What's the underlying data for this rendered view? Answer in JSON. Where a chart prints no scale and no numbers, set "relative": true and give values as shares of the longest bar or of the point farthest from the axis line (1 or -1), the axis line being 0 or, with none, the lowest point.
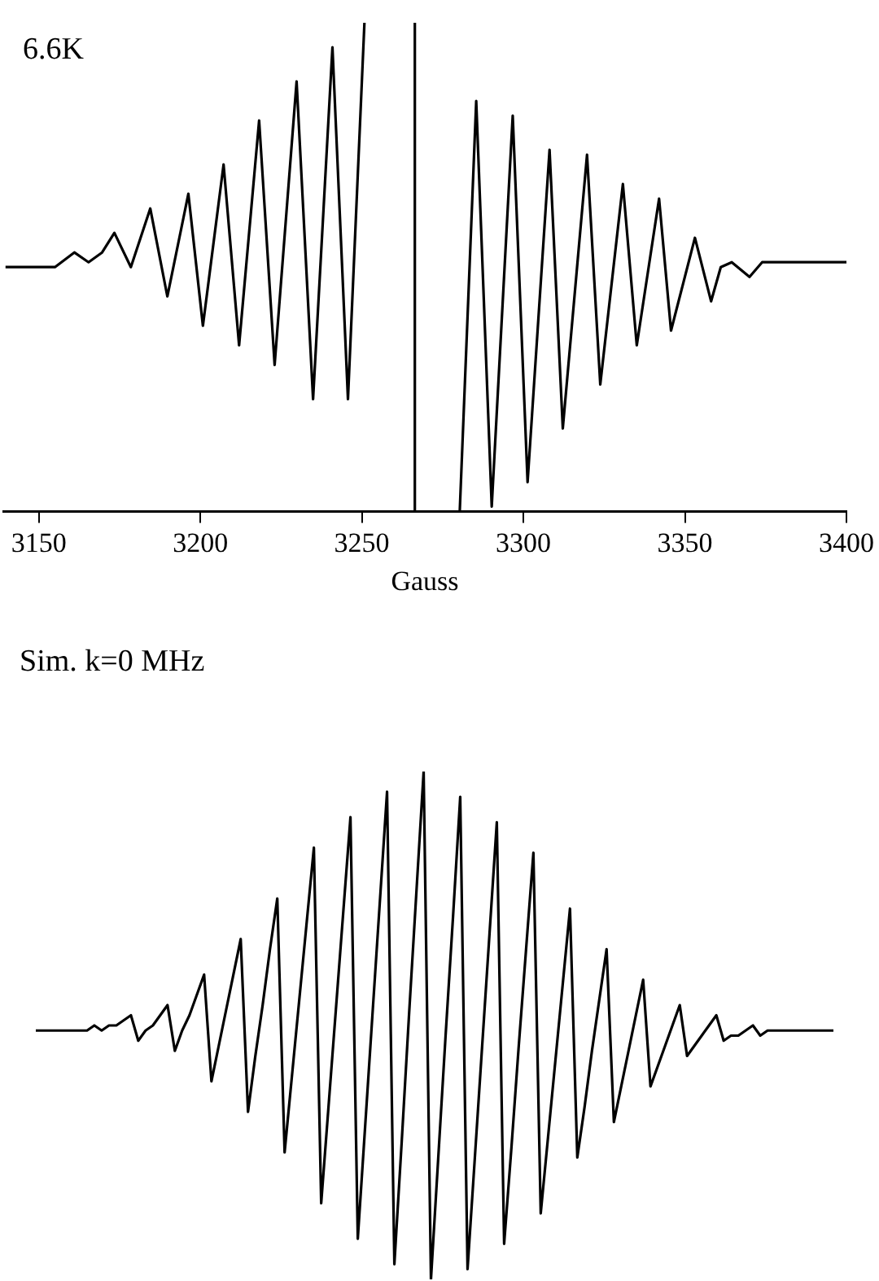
{
  "chart_data": [
    {
      "type": "line",
      "title": "6.6K",
      "xlabel": "Gauss",
      "relative": true,
      "color": "#000000",
      "xlim": [
        3139,
        3400
      ],
      "xticks": [
        3150,
        3200,
        3250,
        3300,
        3350,
        3400
      ],
      "x": [
        3139.7,
        3155,
        3161,
        3165.4,
        3169.6,
        3173.4,
        3178.5,
        3184.5,
        3189.8,
        3196.3,
        3200.8,
        3207.2,
        3212,
        3218.2,
        3223,
        3229.8,
        3234.9,
        3240.9,
        3245.7,
        3250.8,
        3258,
        3266.4,
        3266.4,
        3273,
        3280.3,
        3285.4,
        3290.2,
        3296.7,
        3301.3,
        3308.1,
        3312.2,
        3319.7,
        3323.8,
        3330.8,
        3335.1,
        3342,
        3345.7,
        3353.1,
        3358.1,
        3361.1,
        3364.5,
        3370,
        3373.9,
        3400
      ],
      "values": [
        0.5,
        0.5,
        0.53,
        0.51,
        0.53,
        0.57,
        0.5,
        0.62,
        0.44,
        0.65,
        0.38,
        0.71,
        0.34,
        0.8,
        0.3,
        0.88,
        0.23,
        0.95,
        0.23,
        1.0,
        null,
        1.0,
        0.0,
        null,
        0.0,
        0.84,
        0.01,
        0.81,
        0.06,
        0.74,
        0.17,
        0.73,
        0.26,
        0.67,
        0.34,
        0.64,
        0.37,
        0.56,
        0.43,
        0.5,
        0.51,
        0.48,
        0.51,
        0.51
      ]
    },
    {
      "type": "line",
      "title": "Sim. k=0 MHz",
      "relative": true,
      "color": "#000000",
      "tick_labels": false,
      "categories": [
        null,
        null,
        null,
        null,
        null,
        null,
        null,
        null,
        null,
        null,
        null,
        null,
        null,
        null,
        null,
        null,
        null,
        null,
        null,
        null,
        null,
        null,
        null,
        null,
        null,
        null,
        null,
        null,
        null,
        null,
        null,
        null,
        null,
        null,
        null,
        null,
        null,
        null,
        null,
        null,
        null,
        null,
        null,
        null,
        null,
        null,
        null,
        null,
        null,
        null,
        null,
        null,
        null,
        null,
        null,
        null,
        null,
        null,
        null,
        null,
        null,
        null,
        null,
        null,
        null,
        null,
        null,
        null,
        null,
        null,
        null,
        null,
        null,
        null,
        null,
        null,
        null,
        null,
        null,
        null,
        null,
        null,
        null,
        null,
        null,
        null,
        null,
        null,
        null,
        null,
        null,
        null,
        null,
        null,
        null,
        null,
        null,
        null,
        null,
        null,
        null,
        null,
        null,
        null,
        null,
        null,
        null,
        null,
        null,
        null
      ],
      "values": [
        0.49,
        0.49,
        0.49,
        0.49,
        0.49,
        0.49,
        0.49,
        0.49,
        0.5,
        0.49,
        0.5,
        0.5,
        0.51,
        0.52,
        0.47,
        0.49,
        0.5,
        0.52,
        0.54,
        0.45,
        0.49,
        0.52,
        0.56,
        0.6,
        0.39,
        0.46,
        0.53,
        0.6,
        0.67,
        0.33,
        0.44,
        0.54,
        0.65,
        0.75,
        0.25,
        0.4,
        0.55,
        0.7,
        0.85,
        0.15,
        0.34,
        0.53,
        0.72,
        0.91,
        0.08,
        0.3,
        0.52,
        0.74,
        0.96,
        0.03,
        0.27,
        0.52,
        0.76,
        1.0,
        0.0,
        0.24,
        0.48,
        0.71,
        0.95,
        0.02,
        0.24,
        0.46,
        0.68,
        0.9,
        0.07,
        0.26,
        0.46,
        0.65,
        0.84,
        0.13,
        0.28,
        0.43,
        0.58,
        0.73,
        0.24,
        0.34,
        0.45,
        0.55,
        0.65,
        0.31,
        0.38,
        0.45,
        0.52,
        0.59,
        0.38,
        0.42,
        0.46,
        0.5,
        0.54,
        0.44,
        0.46,
        0.48,
        0.5,
        0.52,
        0.47,
        0.48,
        0.48,
        0.49,
        0.5,
        0.48,
        0.49,
        0.49,
        0.49,
        0.49,
        0.49,
        0.49,
        0.49,
        0.49,
        0.49,
        0.49
      ]
    }
  ]
}
